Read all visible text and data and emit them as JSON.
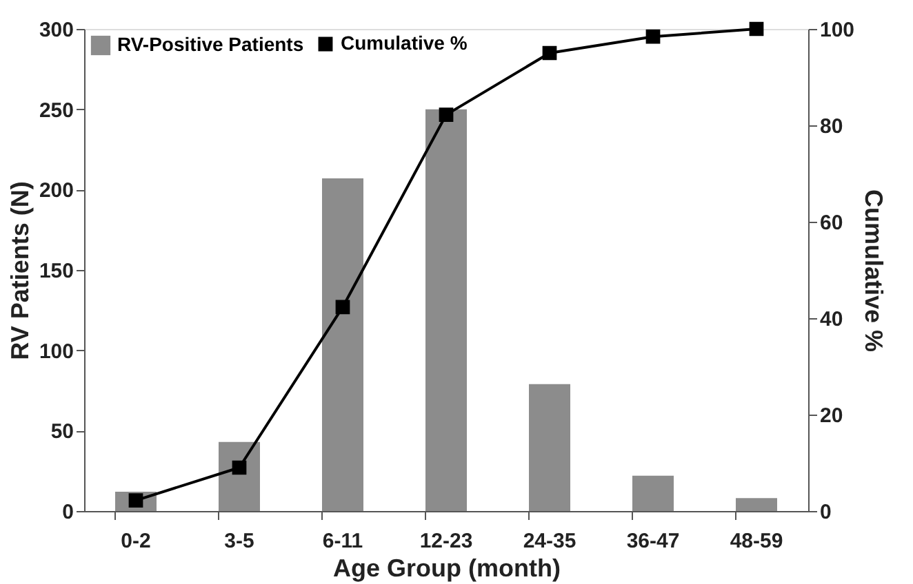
{
  "chart_data": {
    "type": "bar",
    "xlabel": "Age Group (month)",
    "ylabel": "RV Patients (N)",
    "y2label": "Cumulative %",
    "categories": [
      "0-2",
      "3-5",
      "6-11",
      "12-23",
      "24-35",
      "36-47",
      "48-59"
    ],
    "series": [
      {
        "name": "RV-Positive Patients",
        "color": "#8c8c8c",
        "values": [
          12,
          43,
          207,
          250,
          79,
          22,
          8
        ]
      },
      {
        "name": "Cumulative %",
        "type": "line",
        "axis": "y2",
        "color": "#000000",
        "marker": "square",
        "values": [
          2.2,
          9,
          42.3,
          82.2,
          95,
          98.4,
          100
        ]
      }
    ],
    "ylim": [
      0,
      300
    ],
    "yticks": [
      0,
      50,
      100,
      150,
      200,
      250,
      300
    ],
    "y2lim": [
      0,
      100
    ],
    "y2ticks": [
      0,
      20,
      40,
      60,
      80,
      100
    ],
    "grid": false,
    "legend": "top left"
  }
}
